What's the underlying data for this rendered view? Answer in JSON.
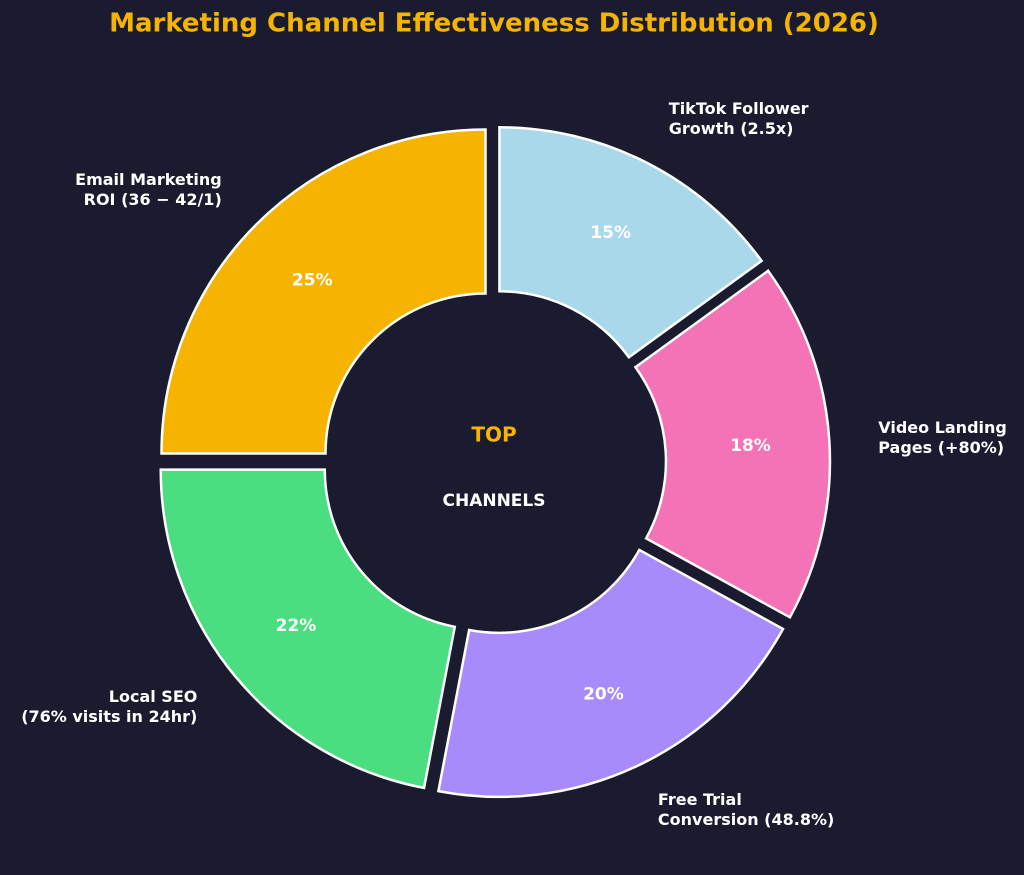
{
  "chart_data": {
    "type": "pie",
    "title": "Marketing Channel Effectiveness Distribution (2026)",
    "center_title": "TOP",
    "center_subtitle": "CHANNELS",
    "categories": [
      "Email Marketing\nROI (36 − 42/1)",
      "Local SEO\n(76% visits in 24hr)",
      "Free Trial\nConversion (48.8%)",
      "Video Landing\nPages (+80%)",
      "TikTok Follower\nGrowth (2.5x)"
    ],
    "values": [
      25,
      22,
      20,
      18,
      15
    ],
    "value_labels": [
      "25%",
      "22%",
      "20%",
      "18%",
      "15%"
    ],
    "colors": [
      "#f6b400",
      "#4ade80",
      "#a78bfa",
      "#f472b6",
      "#a8d8ea"
    ]
  }
}
